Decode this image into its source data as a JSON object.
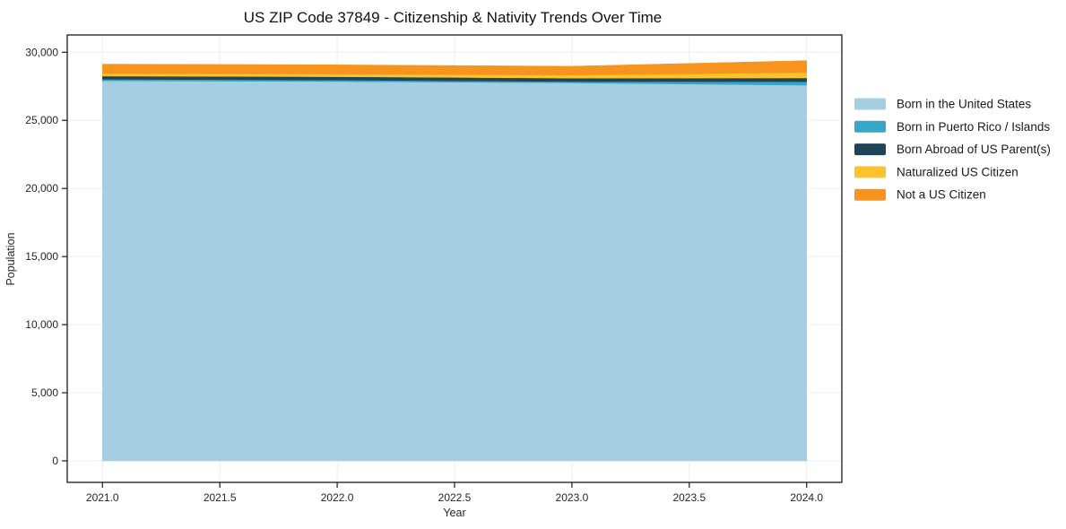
{
  "chart_data": {
    "type": "area",
    "stacked": true,
    "title": "US ZIP Code 37849 - Citizenship & Nativity Trends Over Time",
    "xlabel": "Year",
    "ylabel": "Population",
    "x": [
      2021,
      2022,
      2023,
      2024
    ],
    "series": [
      {
        "name": "Born in the United States",
        "color": "#a5cee3",
        "values": [
          27900,
          27850,
          27750,
          27580
        ]
      },
      {
        "name": "Born in Puerto Rico / Islands",
        "color": "#38a6c6",
        "values": [
          120,
          110,
          100,
          260
        ]
      },
      {
        "name": "Born Abroad of US Parent(s)",
        "color": "#1f4456",
        "values": [
          230,
          240,
          250,
          270
        ]
      },
      {
        "name": "Naturalized US Citizen",
        "color": "#fcc32e",
        "values": [
          180,
          200,
          220,
          400
        ]
      },
      {
        "name": "Not a US Citizen",
        "color": "#f7941e",
        "values": [
          700,
          680,
          650,
          880
        ]
      }
    ],
    "x_ticks": [
      2021.0,
      2021.5,
      2022.0,
      2022.5,
      2023.0,
      2023.5,
      2024.0
    ],
    "x_tick_labels": [
      "2021.0",
      "2021.5",
      "2022.0",
      "2022.5",
      "2023.0",
      "2023.5",
      "2024.0"
    ],
    "y_ticks": [
      0,
      5000,
      10000,
      15000,
      20000,
      25000,
      30000
    ],
    "y_tick_labels": [
      "0",
      "5,000",
      "10,000",
      "15,000",
      "20,000",
      "25,000",
      "30,000"
    ],
    "xlim": [
      2020.85,
      2024.15
    ],
    "ylim": [
      -1580,
      31270
    ],
    "grid": true,
    "grid_color": "#ededed",
    "axis_color": "#1a1a1a",
    "text_color": "#262626",
    "legend_position": "right"
  }
}
